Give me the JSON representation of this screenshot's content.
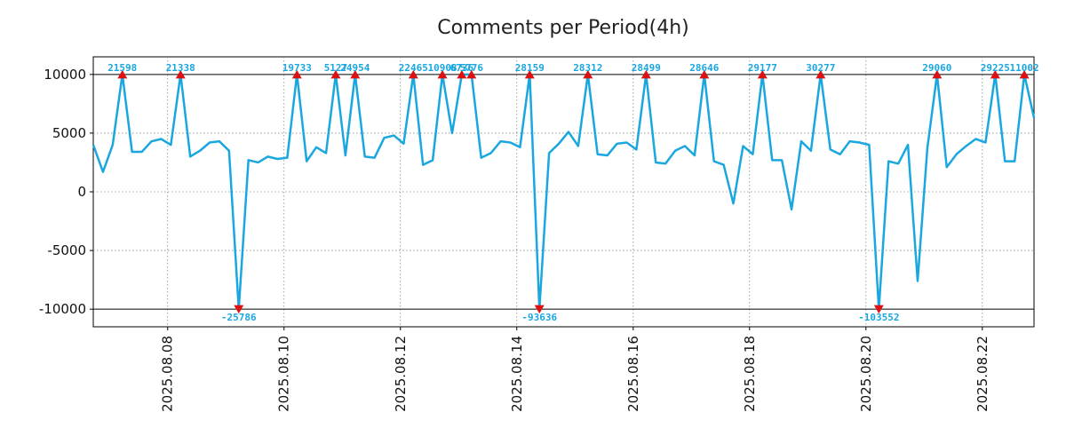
{
  "chart_data": {
    "type": "line",
    "title": "Comments per Period(4h)",
    "xlabel": "",
    "ylabel": "",
    "ylim": [
      -11500,
      11500
    ],
    "xlim": [
      0,
      97
    ],
    "clip_limits": [
      10000,
      -10000
    ],
    "y_ticks": [
      10000,
      5000,
      0,
      -5000,
      -10000
    ],
    "y_tick_labels": [
      "10000",
      "5000",
      "0",
      "-5000",
      "-10000"
    ],
    "x_ticks": [
      {
        "x": 7.67,
        "label": "2025.08.08"
      },
      {
        "x": 19.67,
        "label": "2025.08.10"
      },
      {
        "x": 31.67,
        "label": "2025.08.12"
      },
      {
        "x": 43.67,
        "label": "2025.08.14"
      },
      {
        "x": 55.67,
        "label": "2025.08.16"
      },
      {
        "x": 67.67,
        "label": "2025.08.18"
      },
      {
        "x": 79.67,
        "label": "2025.08.20"
      },
      {
        "x": 91.67,
        "label": "2025.08.22"
      }
    ],
    "grid": true,
    "series": [
      {
        "name": "comments",
        "color": "#1aa7e0",
        "values": [
          4000,
          1700,
          4000,
          10000,
          3400,
          3400,
          4300,
          4500,
          4000,
          10000,
          3000,
          3500,
          4200,
          4300,
          3500,
          -10000,
          2700,
          2500,
          3000,
          2800,
          2900,
          10000,
          2600,
          3800,
          3300,
          10000,
          3100,
          10000,
          3000,
          2900,
          4600,
          4800,
          4100,
          10000,
          2300,
          2700,
          10000,
          5000,
          10000,
          10000,
          2900,
          3300,
          4300,
          4200,
          3800,
          10000,
          -10000,
          3300,
          4100,
          5100,
          3900,
          10000,
          3200,
          3100,
          4100,
          4200,
          3600,
          10000,
          2500,
          2400,
          3500,
          3900,
          3100,
          10000,
          2600,
          2300,
          -1000,
          3900,
          3200,
          10000,
          2700,
          2700,
          -1500,
          4300,
          3500,
          10000,
          3600,
          3200,
          4300,
          4200,
          4000,
          -10000,
          2600,
          2400,
          4000,
          -7600,
          3700,
          10000,
          2100,
          3200,
          3900,
          4500,
          4200,
          10000,
          2600,
          2600,
          10000,
          6300
        ]
      }
    ],
    "peaks": [
      {
        "x": 3,
        "label": "21598",
        "dir": "up"
      },
      {
        "x": 9,
        "label": "21338",
        "dir": "up"
      },
      {
        "x": 15,
        "label": "-25786",
        "dir": "down"
      },
      {
        "x": 21,
        "label": "19733",
        "dir": "up"
      },
      {
        "x": 25,
        "label": "5127",
        "dir": "up"
      },
      {
        "x": 27,
        "label": "24954",
        "dir": "up"
      },
      {
        "x": 33,
        "label": "22465",
        "dir": "up"
      },
      {
        "x": 36,
        "label": "10908",
        "dir": "up"
      },
      {
        "x": 38,
        "label": "6736",
        "dir": "up"
      },
      {
        "x": 39,
        "label": "5776",
        "dir": "up"
      },
      {
        "x": 45,
        "label": "28159",
        "dir": "up"
      },
      {
        "x": 46,
        "label": "-93636",
        "dir": "down"
      },
      {
        "x": 51,
        "label": "28312",
        "dir": "up"
      },
      {
        "x": 57,
        "label": "28499",
        "dir": "up"
      },
      {
        "x": 63,
        "label": "28646",
        "dir": "up"
      },
      {
        "x": 69,
        "label": "29177",
        "dir": "up"
      },
      {
        "x": 75,
        "label": "30277",
        "dir": "up"
      },
      {
        "x": 81,
        "label": "-103552",
        "dir": "down"
      },
      {
        "x": 87,
        "label": "29060",
        "dir": "up"
      },
      {
        "x": 93,
        "label": "29225",
        "dir": "up"
      },
      {
        "x": 96,
        "label": "11002",
        "dir": "up"
      }
    ],
    "marker_color": "#dd1111"
  }
}
